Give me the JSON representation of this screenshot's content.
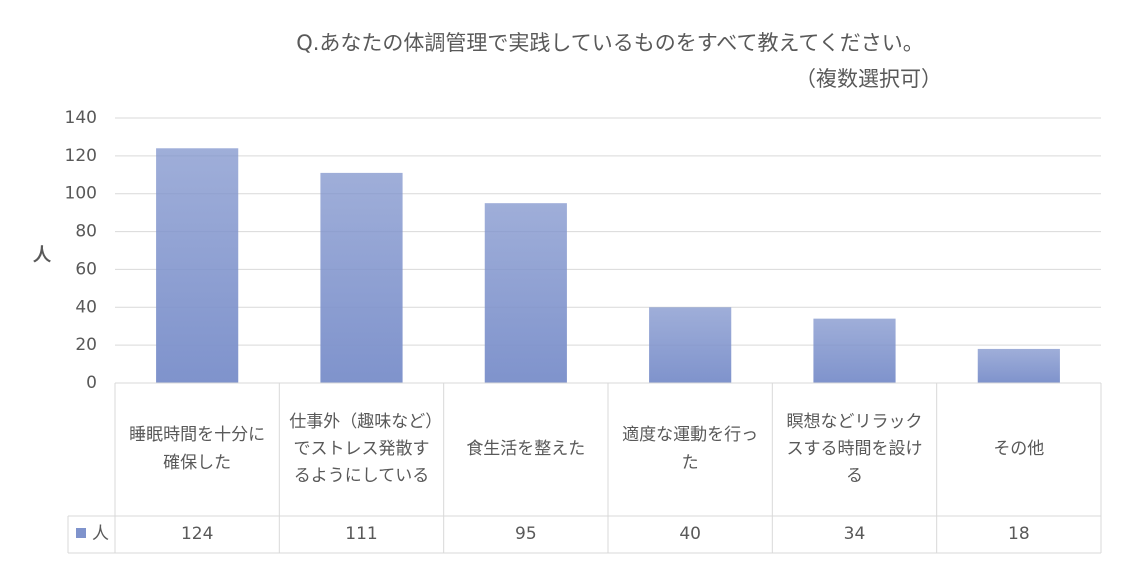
{
  "chart_data": {
    "type": "bar",
    "title": "Q.あなたの体調管理で実践しているものをすべて教えてください。",
    "subtitle": "（複数選択可）",
    "y_label": "人",
    "categories": [
      "睡眠時間を十分に確保した",
      "仕事外（趣味など）でストレス発散するようにしている",
      "食生活を整えた",
      "適度な運動を行った",
      "瞑想などリラックスする時間を設ける",
      "その他"
    ],
    "series": [
      {
        "name": "人",
        "color": "#7f93cc",
        "values": [
          124,
          111,
          95,
          40,
          34,
          18
        ]
      }
    ],
    "ylim": [
      0,
      140
    ],
    "yticks": [
      0,
      20,
      40,
      60,
      80,
      100,
      120,
      140
    ],
    "grid": true,
    "data_table": true
  }
}
